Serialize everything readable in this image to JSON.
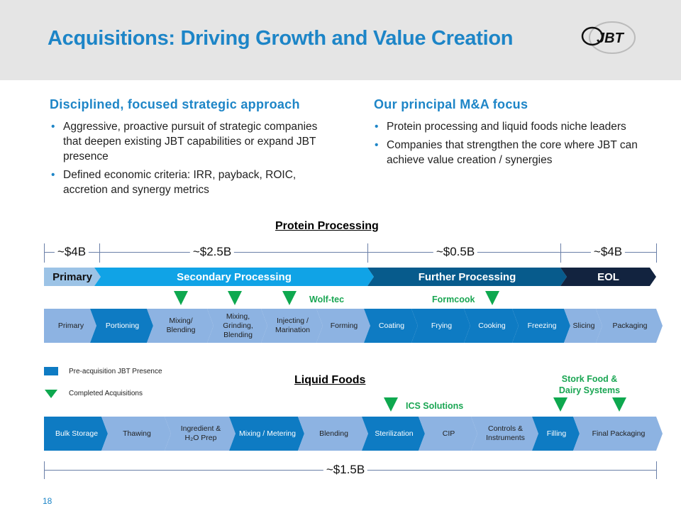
{
  "title": "Acquisitions: Driving Growth and Value Creation",
  "logo_text": "JBT",
  "left": {
    "heading": "Disciplined,  focused strategic approach",
    "bullets": [
      "Aggressive, proactive pursuit of strategic companies that deepen existing JBT capabilities or expand JBT presence",
      "Defined economic criteria: IRR, payback, ROIC, accretion and synergy metrics"
    ]
  },
  "right": {
    "heading": "Our principal M&A focus",
    "bullets": [
      "Protein processing and liquid foods niche leaders",
      "Companies that strengthen the core where JBT can achieve value creation / synergies"
    ]
  },
  "protein": {
    "title": "Protein Processing",
    "amounts": [
      "~$4B",
      "~$2.5B",
      "~$0.5B",
      "~$4B"
    ],
    "categories": [
      "Primary",
      "Secondary Processing",
      "Further Processing",
      "EOL"
    ],
    "steps": [
      "Primary",
      "Portioning",
      "Mixing/ Blending",
      "Mixing, Grinding, Blending",
      "Injecting / Marination",
      "Forming",
      "Coating",
      "Frying",
      "Cooking",
      "Freezing",
      "Slicing",
      "Packaging"
    ],
    "acquisitions": [
      "Wolf-tec",
      "Formcook"
    ]
  },
  "liquid": {
    "title": "Liquid Foods",
    "steps": [
      "Bulk Storage",
      "Thawing",
      "Ingredient & H₂O Prep",
      "Mixing / Metering",
      "Blending",
      "Sterilization",
      "CIP",
      "Controls & Instruments",
      "Filling",
      "Final Packaging"
    ],
    "acquisitions": [
      "ICS Solutions",
      "Stork Food & Dairy Systems"
    ],
    "amount": "~$1.5B"
  },
  "legend": {
    "presence": "Pre-acquisition JBT Presence",
    "completed": "Completed Acquisitions"
  },
  "page_number": "18",
  "colors": {
    "accent": "#1d85c7",
    "dark_step": "#0e7bc3",
    "light_step": "#8db3e2",
    "acquisition": "#0ea84f"
  }
}
